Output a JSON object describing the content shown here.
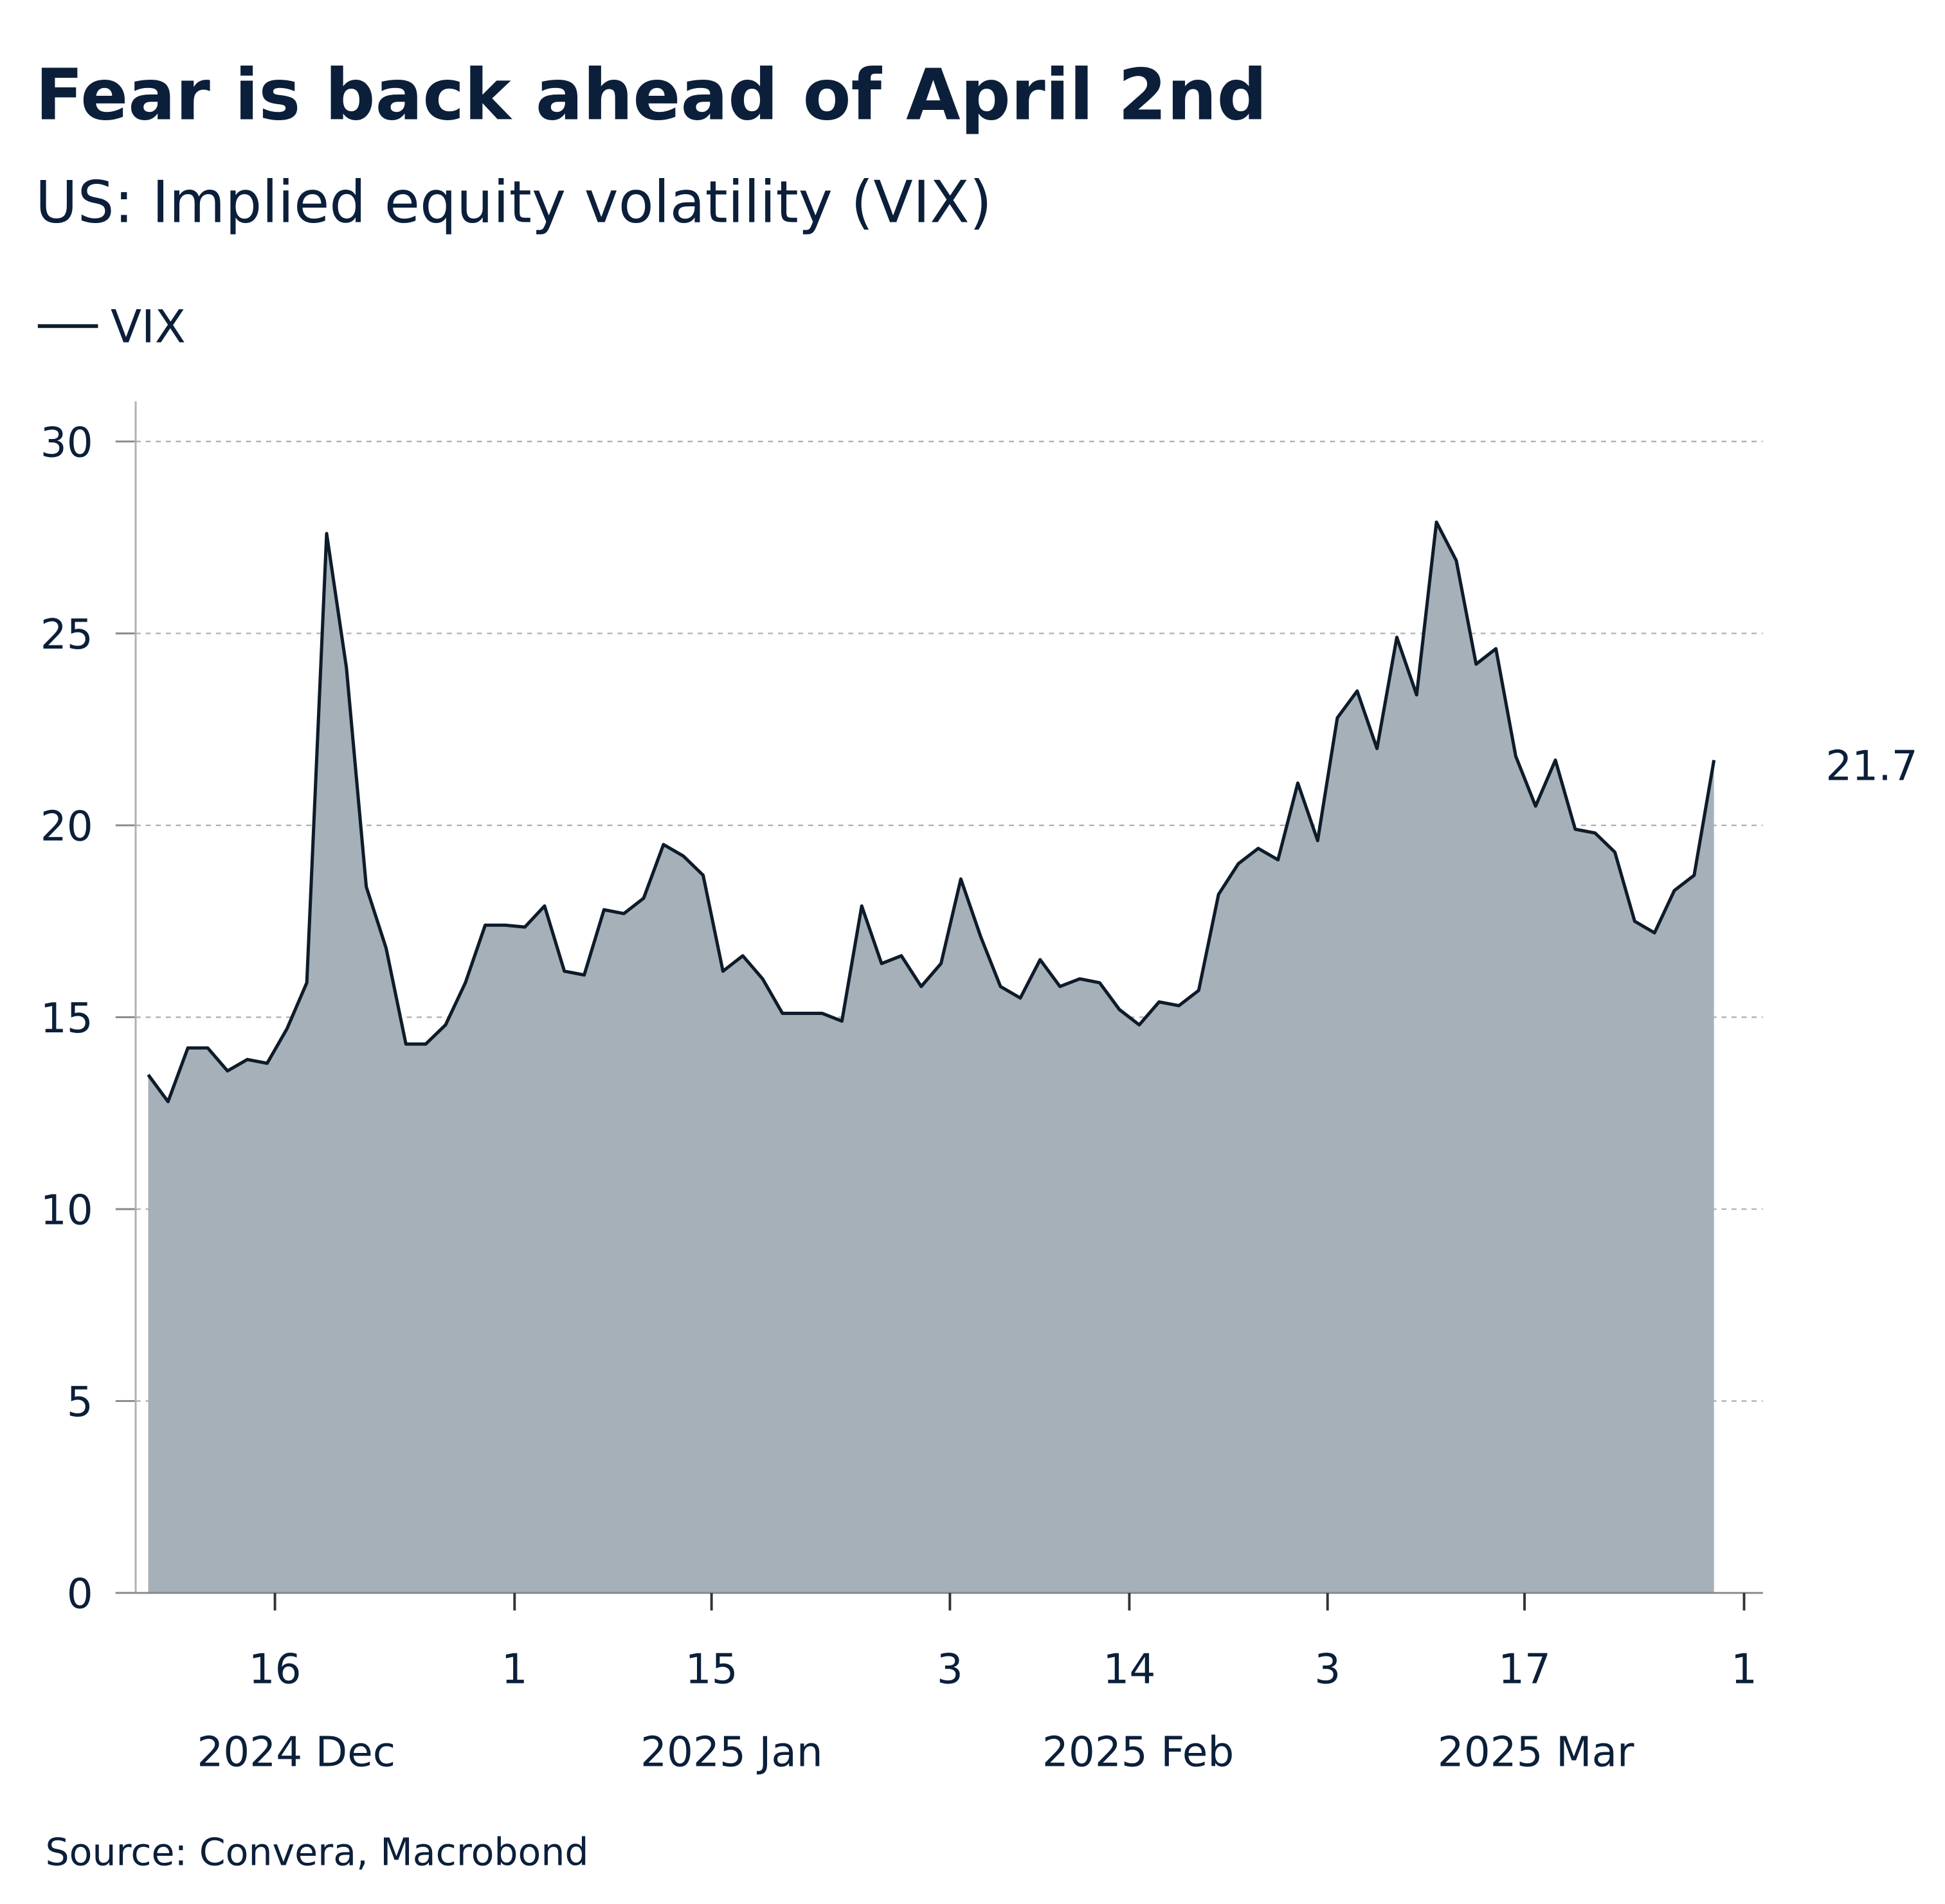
{
  "title": "Fear is back ahead of April 2nd",
  "subtitle": "US: Implied equity volatility (VIX)",
  "source": "Source: Convera, Macrobond",
  "colors": {
    "text": "#0b1f3a",
    "line": "#0d1b2a",
    "area": "#a6b0b8",
    "grid": "#b0b0b0"
  },
  "chart_data": {
    "type": "area",
    "title": "Fear is back ahead of April 2nd",
    "subtitle": "US: Implied equity volatility (VIX)",
    "legend": {
      "placement": "top-left",
      "entries": [
        "VIX"
      ]
    },
    "grid": true,
    "ylim": [
      0,
      30
    ],
    "yticks": [
      "0",
      "5",
      "10",
      "15",
      "20",
      "25",
      "30"
    ],
    "xticks": [
      {
        "label": "16",
        "month": "2024 Dec"
      },
      {
        "label": "1",
        "month": "2025 Jan"
      },
      {
        "label": "15",
        "month": ""
      },
      {
        "label": "3",
        "month": "2025 Feb"
      },
      {
        "label": "14",
        "month": ""
      },
      {
        "label": "3",
        "month": "2025 Mar"
      },
      {
        "label": "17",
        "month": ""
      },
      {
        "label": "1",
        "month": ""
      }
    ],
    "month_labels": [
      "2024 Dec",
      "2025 Jan",
      "2025 Feb",
      "2025 Mar"
    ],
    "last_value_label": "21.7",
    "series": [
      {
        "name": "VIX",
        "values": [
          13.5,
          12.8,
          14.2,
          14.2,
          13.6,
          13.9,
          13.8,
          14.7,
          15.9,
          27.6,
          24.1,
          18.4,
          16.8,
          14.3,
          14.3,
          14.8,
          15.9,
          17.4,
          17.4,
          17.35,
          17.9,
          16.2,
          16.1,
          17.8,
          17.7,
          18.1,
          19.5,
          19.2,
          18.7,
          16.2,
          16.6,
          16.0,
          15.1,
          15.1,
          15.1,
          14.9,
          17.9,
          16.4,
          16.6,
          15.8,
          16.4,
          18.6,
          17.1,
          15.8,
          15.5,
          16.5,
          15.8,
          16.0,
          15.9,
          15.2,
          14.8,
          15.4,
          15.3,
          15.7,
          18.2,
          19.0,
          19.4,
          19.1,
          21.1,
          19.6,
          22.8,
          23.5,
          22.0,
          24.9,
          23.4,
          27.9,
          26.9,
          24.2,
          24.6,
          21.8,
          20.5,
          21.7,
          19.9,
          19.8,
          19.3,
          17.5,
          17.2,
          18.3,
          18.7,
          21.7
        ]
      }
    ]
  }
}
